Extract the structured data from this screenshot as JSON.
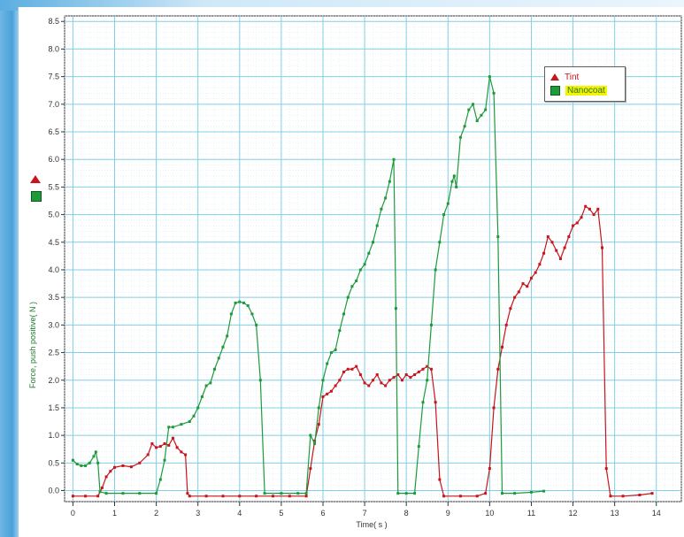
{
  "chart_data": {
    "type": "line",
    "title": "",
    "xlabel": "Time( s )",
    "ylabel": "Force, push positive( N )",
    "xlim": [
      -0.2,
      14.6
    ],
    "ylim": [
      -0.2,
      8.6
    ],
    "x_ticks": [
      "0",
      "1",
      "2",
      "3",
      "4",
      "5",
      "6",
      "7",
      "8",
      "9",
      "10",
      "11",
      "12",
      "13",
      "14"
    ],
    "y_ticks": [
      "0.0",
      "0.5",
      "1.0",
      "1.5",
      "2.0",
      "2.5",
      "3.0",
      "3.5",
      "4.0",
      "4.5",
      "5.0",
      "5.5",
      "6.0",
      "6.5",
      "7.0",
      "7.5",
      "8.0",
      "8.5"
    ],
    "grid": true,
    "legend_placement": "top-right",
    "series": [
      {
        "name": "Tint",
        "color": "#c8141c",
        "marker": "triangle",
        "points": [
          [
            0.0,
            -0.1
          ],
          [
            0.3,
            -0.1
          ],
          [
            0.6,
            -0.1
          ],
          [
            0.7,
            0.05
          ],
          [
            0.8,
            0.25
          ],
          [
            0.9,
            0.35
          ],
          [
            1.0,
            0.42
          ],
          [
            1.2,
            0.45
          ],
          [
            1.4,
            0.43
          ],
          [
            1.6,
            0.5
          ],
          [
            1.8,
            0.65
          ],
          [
            1.9,
            0.85
          ],
          [
            2.0,
            0.78
          ],
          [
            2.1,
            0.8
          ],
          [
            2.2,
            0.85
          ],
          [
            2.3,
            0.82
          ],
          [
            2.4,
            0.95
          ],
          [
            2.5,
            0.78
          ],
          [
            2.6,
            0.7
          ],
          [
            2.7,
            0.65
          ],
          [
            2.75,
            -0.05
          ],
          [
            2.8,
            -0.1
          ],
          [
            3.2,
            -0.1
          ],
          [
            3.6,
            -0.1
          ],
          [
            4.0,
            -0.1
          ],
          [
            4.4,
            -0.1
          ],
          [
            4.8,
            -0.1
          ],
          [
            5.2,
            -0.1
          ],
          [
            5.6,
            -0.1
          ],
          [
            5.7,
            0.4
          ],
          [
            5.8,
            0.9
          ],
          [
            5.9,
            1.2
          ],
          [
            6.0,
            1.7
          ],
          [
            6.1,
            1.75
          ],
          [
            6.2,
            1.8
          ],
          [
            6.3,
            1.9
          ],
          [
            6.4,
            2.0
          ],
          [
            6.5,
            2.15
          ],
          [
            6.6,
            2.2
          ],
          [
            6.7,
            2.2
          ],
          [
            6.8,
            2.25
          ],
          [
            6.9,
            2.1
          ],
          [
            7.0,
            1.95
          ],
          [
            7.1,
            1.9
          ],
          [
            7.2,
            2.0
          ],
          [
            7.3,
            2.1
          ],
          [
            7.4,
            1.95
          ],
          [
            7.5,
            1.9
          ],
          [
            7.6,
            2.0
          ],
          [
            7.7,
            2.05
          ],
          [
            7.8,
            2.1
          ],
          [
            7.9,
            2.0
          ],
          [
            8.0,
            2.1
          ],
          [
            8.1,
            2.05
          ],
          [
            8.2,
            2.1
          ],
          [
            8.3,
            2.15
          ],
          [
            8.4,
            2.2
          ],
          [
            8.5,
            2.25
          ],
          [
            8.6,
            2.2
          ],
          [
            8.7,
            1.6
          ],
          [
            8.8,
            0.2
          ],
          [
            8.9,
            -0.1
          ],
          [
            9.3,
            -0.1
          ],
          [
            9.7,
            -0.1
          ],
          [
            9.9,
            -0.05
          ],
          [
            10.0,
            0.4
          ],
          [
            10.1,
            1.5
          ],
          [
            10.2,
            2.2
          ],
          [
            10.3,
            2.6
          ],
          [
            10.4,
            3.0
          ],
          [
            10.5,
            3.3
          ],
          [
            10.6,
            3.5
          ],
          [
            10.7,
            3.6
          ],
          [
            10.8,
            3.75
          ],
          [
            10.9,
            3.7
          ],
          [
            11.0,
            3.85
          ],
          [
            11.1,
            3.95
          ],
          [
            11.2,
            4.1
          ],
          [
            11.3,
            4.3
          ],
          [
            11.4,
            4.6
          ],
          [
            11.5,
            4.5
          ],
          [
            11.6,
            4.35
          ],
          [
            11.7,
            4.2
          ],
          [
            11.8,
            4.4
          ],
          [
            11.9,
            4.6
          ],
          [
            12.0,
            4.8
          ],
          [
            12.1,
            4.85
          ],
          [
            12.2,
            4.95
          ],
          [
            12.3,
            5.15
          ],
          [
            12.4,
            5.1
          ],
          [
            12.5,
            5.0
          ],
          [
            12.6,
            5.1
          ],
          [
            12.7,
            4.4
          ],
          [
            12.8,
            0.4
          ],
          [
            12.9,
            -0.1
          ],
          [
            13.2,
            -0.1
          ],
          [
            13.6,
            -0.08
          ],
          [
            13.9,
            -0.05
          ]
        ]
      },
      {
        "name": "Nanocoat",
        "color": "#1f9a3a",
        "marker": "square",
        "points": [
          [
            0.0,
            0.55
          ],
          [
            0.1,
            0.48
          ],
          [
            0.2,
            0.45
          ],
          [
            0.3,
            0.45
          ],
          [
            0.4,
            0.5
          ],
          [
            0.5,
            0.62
          ],
          [
            0.55,
            0.7
          ],
          [
            0.6,
            0.5
          ],
          [
            0.65,
            -0.02
          ],
          [
            0.8,
            -0.05
          ],
          [
            1.2,
            -0.05
          ],
          [
            1.6,
            -0.05
          ],
          [
            2.0,
            -0.05
          ],
          [
            2.1,
            0.2
          ],
          [
            2.2,
            0.55
          ],
          [
            2.3,
            1.15
          ],
          [
            2.4,
            1.15
          ],
          [
            2.6,
            1.2
          ],
          [
            2.8,
            1.25
          ],
          [
            2.9,
            1.35
          ],
          [
            3.0,
            1.5
          ],
          [
            3.1,
            1.7
          ],
          [
            3.2,
            1.9
          ],
          [
            3.3,
            1.95
          ],
          [
            3.4,
            2.2
          ],
          [
            3.5,
            2.4
          ],
          [
            3.6,
            2.6
          ],
          [
            3.7,
            2.8
          ],
          [
            3.8,
            3.2
          ],
          [
            3.9,
            3.4
          ],
          [
            4.0,
            3.42
          ],
          [
            4.1,
            3.4
          ],
          [
            4.2,
            3.35
          ],
          [
            4.3,
            3.2
          ],
          [
            4.4,
            3.0
          ],
          [
            4.5,
            2.0
          ],
          [
            4.6,
            -0.05
          ],
          [
            5.0,
            -0.05
          ],
          [
            5.4,
            -0.05
          ],
          [
            5.6,
            -0.05
          ],
          [
            5.7,
            1.0
          ],
          [
            5.8,
            0.85
          ],
          [
            5.9,
            1.5
          ],
          [
            6.0,
            2.0
          ],
          [
            6.1,
            2.3
          ],
          [
            6.2,
            2.5
          ],
          [
            6.3,
            2.55
          ],
          [
            6.4,
            2.9
          ],
          [
            6.5,
            3.2
          ],
          [
            6.6,
            3.5
          ],
          [
            6.7,
            3.7
          ],
          [
            6.8,
            3.8
          ],
          [
            6.9,
            4.0
          ],
          [
            7.0,
            4.1
          ],
          [
            7.1,
            4.3
          ],
          [
            7.2,
            4.5
          ],
          [
            7.3,
            4.8
          ],
          [
            7.4,
            5.1
          ],
          [
            7.5,
            5.3
          ],
          [
            7.6,
            5.6
          ],
          [
            7.7,
            6.0
          ],
          [
            7.75,
            3.3
          ],
          [
            7.8,
            -0.05
          ],
          [
            8.0,
            -0.05
          ],
          [
            8.2,
            -0.05
          ],
          [
            8.3,
            0.8
          ],
          [
            8.4,
            1.6
          ],
          [
            8.5,
            2.0
          ],
          [
            8.6,
            3.0
          ],
          [
            8.7,
            4.0
          ],
          [
            8.8,
            4.5
          ],
          [
            8.9,
            5.0
          ],
          [
            9.0,
            5.2
          ],
          [
            9.1,
            5.6
          ],
          [
            9.15,
            5.7
          ],
          [
            9.2,
            5.5
          ],
          [
            9.3,
            6.4
          ],
          [
            9.4,
            6.6
          ],
          [
            9.5,
            6.9
          ],
          [
            9.6,
            7.0
          ],
          [
            9.7,
            6.7
          ],
          [
            9.8,
            6.8
          ],
          [
            9.9,
            6.9
          ],
          [
            10.0,
            7.5
          ],
          [
            10.1,
            7.2
          ],
          [
            10.2,
            4.6
          ],
          [
            10.3,
            -0.05
          ],
          [
            10.6,
            -0.05
          ],
          [
            11.0,
            -0.03
          ],
          [
            11.3,
            -0.01
          ]
        ]
      }
    ]
  },
  "side_legend": {
    "tint_icon": "red-triangle-icon",
    "nanocoat_icon": "green-square-icon"
  }
}
